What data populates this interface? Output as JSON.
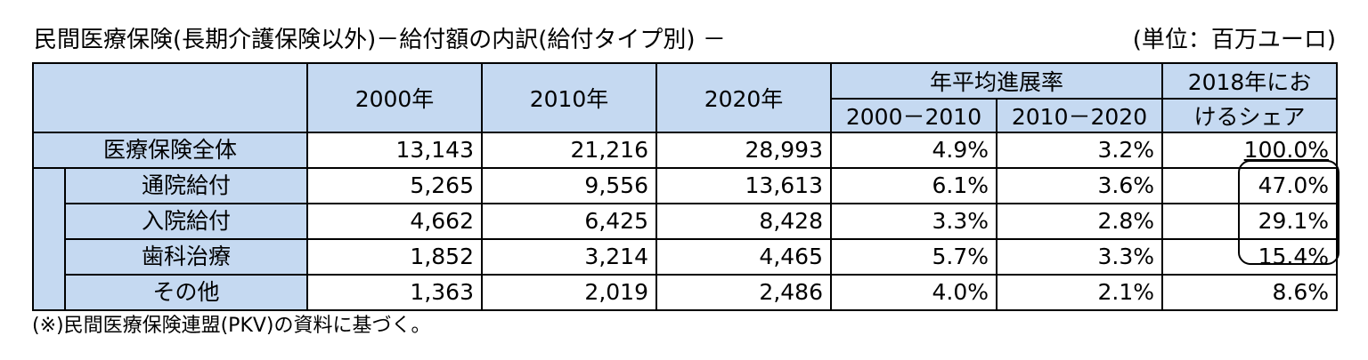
{
  "title": "民間医療保険(長期介護保険以外)－給付額の内訳(給付タイプ別) －",
  "unit": "(単位：百万ユーロ)",
  "table": {
    "headers": {
      "y2000": "2000年",
      "y2010": "2010年",
      "y2020": "2020年",
      "growth": "年平均進展率",
      "growth_2000_2010": "2000－2010",
      "growth_2010_2020": "2010－2020",
      "share_line1": "2018年にお",
      "share_line2": "けるシェア"
    },
    "rows": [
      {
        "label": "医療保険全体",
        "v2000": "13,143",
        "v2010": "21,216",
        "v2020": "28,993",
        "g1": "4.9%",
        "g2": "3.2%",
        "share": "100.0%"
      },
      {
        "label": "通院給付",
        "v2000": "5,265",
        "v2010": "9,556",
        "v2020": "13,613",
        "g1": "6.1%",
        "g2": "3.6%",
        "share": "47.0%"
      },
      {
        "label": "入院給付",
        "v2000": "4,662",
        "v2010": "6,425",
        "v2020": "8,428",
        "g1": "3.3%",
        "g2": "2.8%",
        "share": "29.1%"
      },
      {
        "label": "歯科治療",
        "v2000": "1,852",
        "v2010": "3,214",
        "v2020": "4,465",
        "g1": "5.7%",
        "g2": "3.3%",
        "share": "15.4%"
      },
      {
        "label": "その他",
        "v2000": "1,363",
        "v2010": "2,019",
        "v2020": "2,486",
        "g1": "4.0%",
        "g2": "2.1%",
        "share": "8.6%"
      }
    ]
  },
  "footnote": "(※)民間医療保険連盟(PKV)の資料に基づく。",
  "colors": {
    "header_bg": "#c5d9f1",
    "border": "#000000"
  }
}
